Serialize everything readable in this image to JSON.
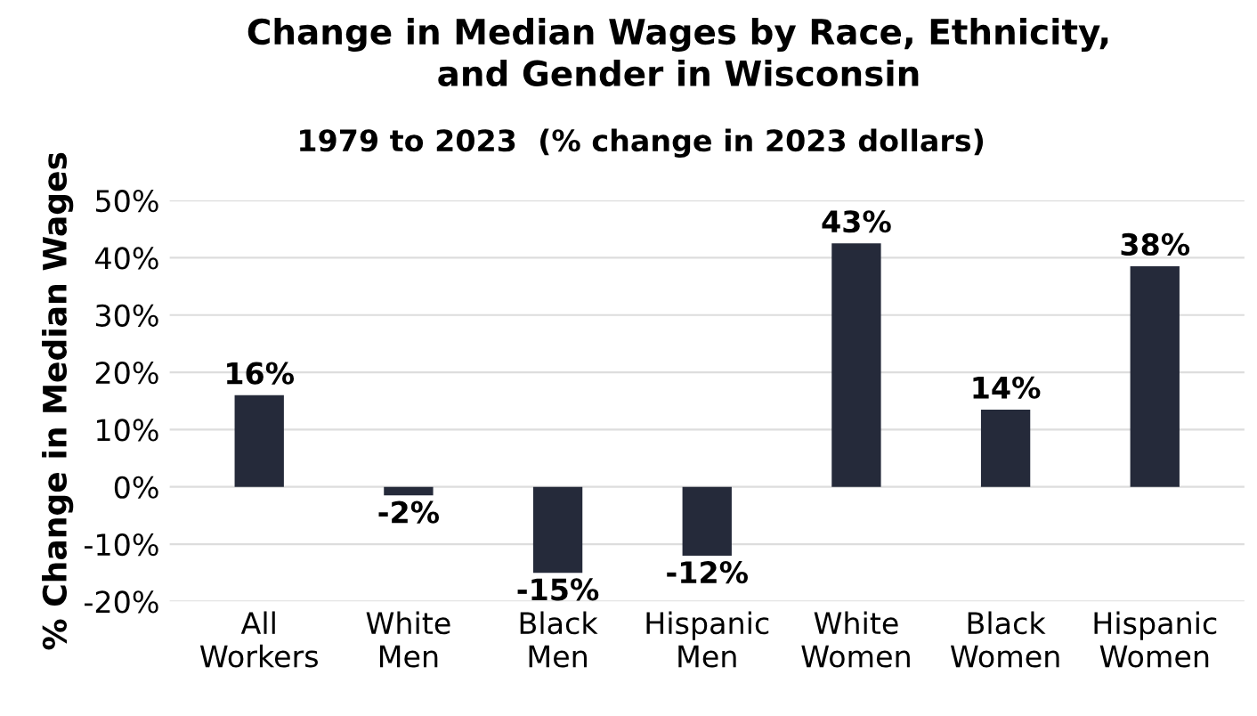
{
  "chart_data": {
    "type": "bar",
    "title": "Change in Median Wages by Race, Ethnicity,\nand Gender in Wisconsin",
    "subtitle": "1979 to 2023  (% change in 2023 dollars)",
    "ylabel": "% Change in Median Wages",
    "categories": [
      "All Workers",
      "White Men",
      "Black Men",
      "Hispanic Men",
      "White Women",
      "Black Women",
      "Hispanic Women"
    ],
    "values": [
      16,
      -1.5,
      -15,
      -12,
      42.5,
      13.5,
      38.5
    ],
    "value_labels": [
      "16%",
      "-2%",
      "-15%",
      "-12%",
      "43%",
      "14%",
      "38%"
    ],
    "color": "#252a3a",
    "ylim": [
      -20,
      50
    ],
    "yticks": [
      {
        "value": -20,
        "label": "-20%"
      },
      {
        "value": -10,
        "label": "-10%"
      },
      {
        "value": 0,
        "label": "0%"
      },
      {
        "value": 10,
        "label": "10%"
      },
      {
        "value": 20,
        "label": "20%"
      },
      {
        "value": 30,
        "label": "30%"
      },
      {
        "value": 40,
        "label": "40%"
      },
      {
        "value": 50,
        "label": "50%"
      }
    ],
    "grid": "y",
    "legend": false
  }
}
